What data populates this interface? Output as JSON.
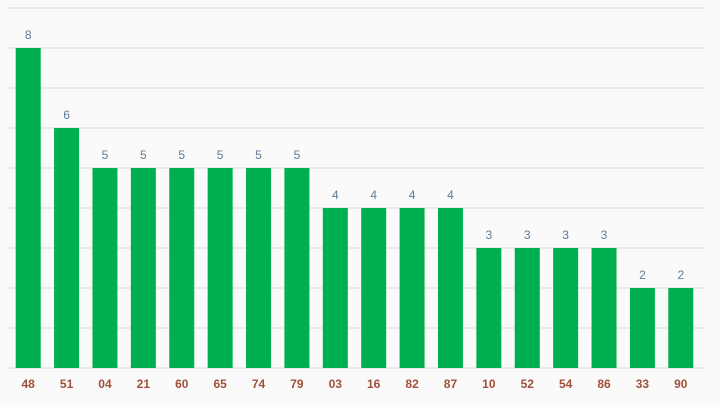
{
  "chart_data": {
    "type": "bar",
    "categories": [
      "48",
      "51",
      "04",
      "21",
      "60",
      "65",
      "74",
      "79",
      "03",
      "16",
      "82",
      "87",
      "10",
      "52",
      "54",
      "86",
      "33",
      "90"
    ],
    "values": [
      8,
      6,
      5,
      5,
      5,
      5,
      5,
      5,
      4,
      4,
      4,
      4,
      3,
      3,
      3,
      3,
      2,
      2
    ],
    "color": "#00b050",
    "ylim": [
      0,
      9
    ],
    "yticks": [
      0,
      1,
      2,
      3,
      4,
      5,
      6,
      7,
      8,
      9
    ],
    "grid": true
  }
}
